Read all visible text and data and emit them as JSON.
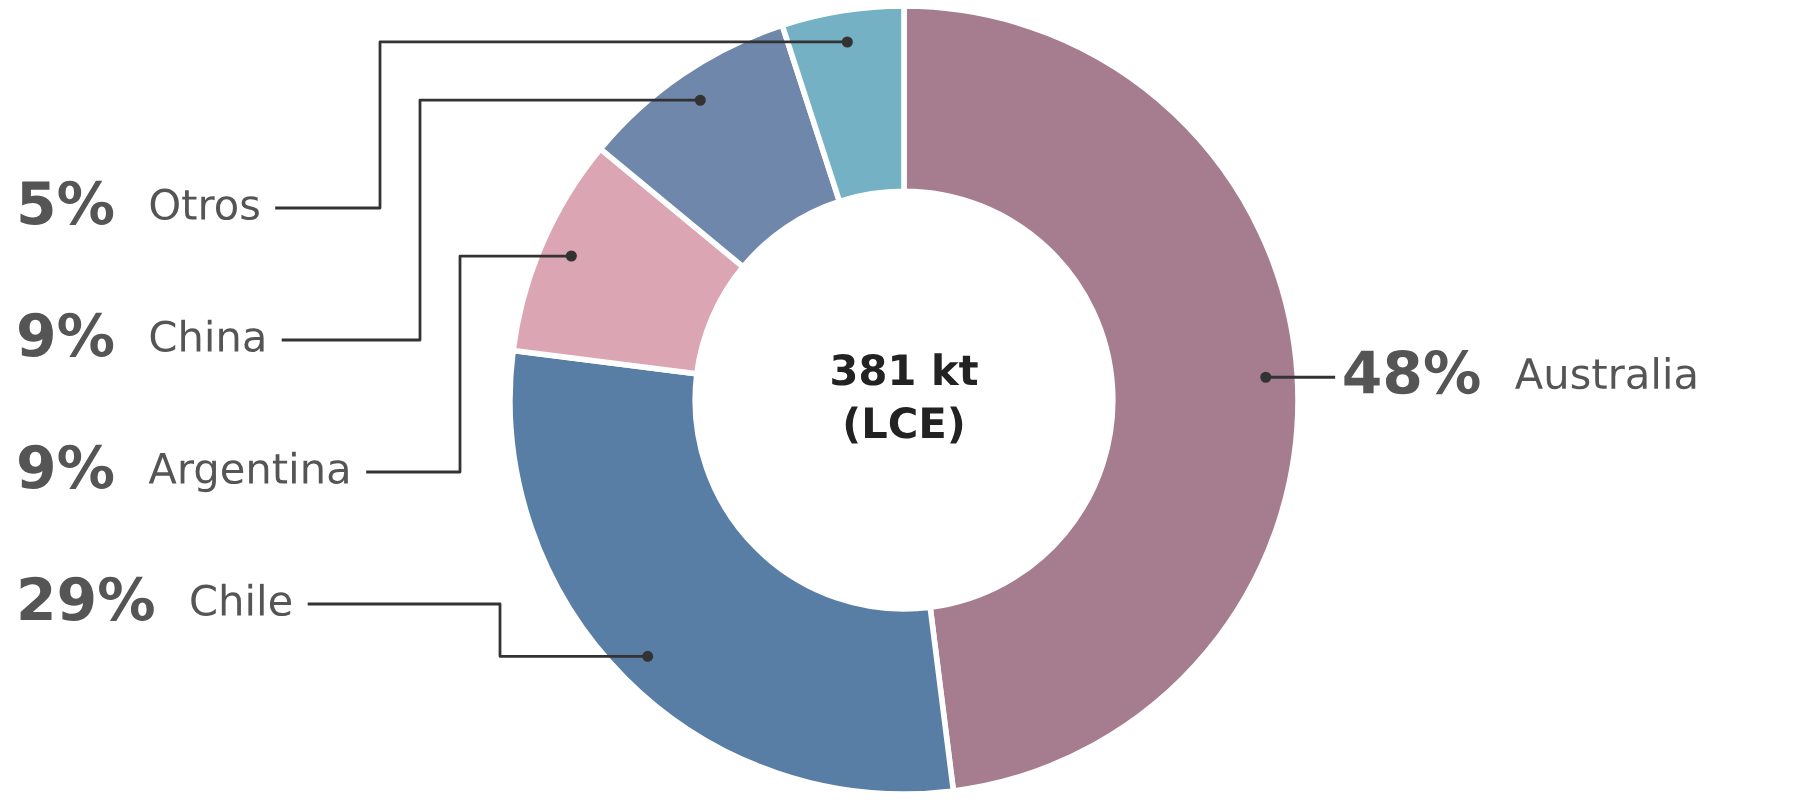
{
  "chart_data": {
    "type": "donut",
    "categories": [
      "Australia",
      "Chile",
      "Argentina",
      "China",
      "Otros"
    ],
    "values": [
      48,
      29,
      9,
      9,
      5
    ],
    "colors": [
      "#a67d8e",
      "#587ea6",
      "#dba5b3",
      "#6f87ab",
      "#74b1c4"
    ],
    "value_labels": [
      "48%",
      "29%",
      "9%",
      "9%",
      "5%"
    ],
    "annotations": [
      "381 kt\n(LCE)"
    ]
  }
}
